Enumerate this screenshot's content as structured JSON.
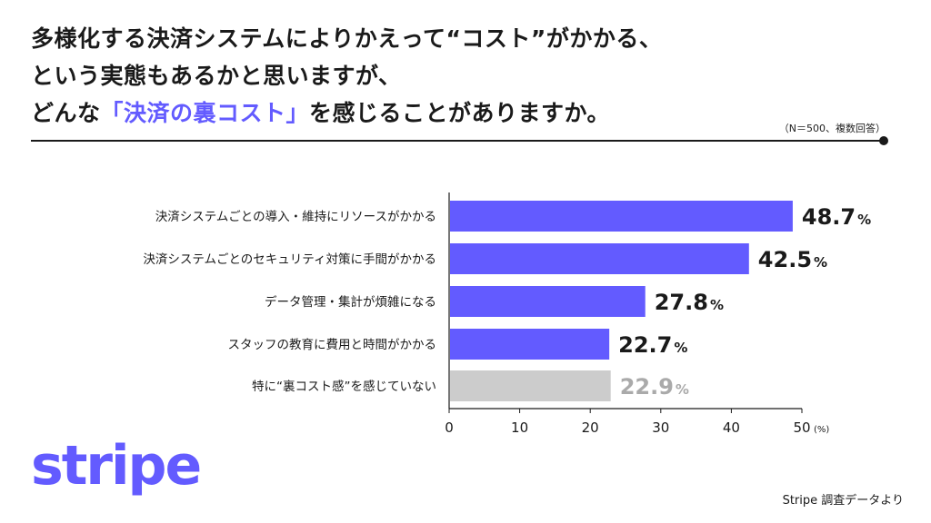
{
  "title": {
    "line1": "多様化する決済システムによりかえって“コスト”がかかる、",
    "line2": "という実態もあるかと思いますが、",
    "line3_prefix": "どんな",
    "line3_highlight": "「決済の裏コスト」",
    "line3_suffix": "を感じることがありますか。"
  },
  "note": "（N＝500、複数回答）",
  "logo": "stripe",
  "source": "Stripe 調査データより",
  "colors": {
    "accent": "#635bff",
    "muted": "#cccccc",
    "muted_text": "#aaaaaa",
    "text": "#1a1a1a"
  },
  "chart_data": {
    "type": "bar",
    "orientation": "horizontal",
    "categories": [
      "決済システムごとの導入・維持にリソースがかかる",
      "決済システムごとのセキュリティ対策に手間がかかる",
      "データ管理・集計が煩雑になる",
      "スタッフの教育に費用と時間がかかる",
      "特に“裏コスト感”を感じていない"
    ],
    "values": [
      48.7,
      42.5,
      27.8,
      22.7,
      22.9
    ],
    "muted": [
      false,
      false,
      false,
      false,
      true
    ],
    "value_unit": "%",
    "xlim": [
      0,
      50
    ],
    "xticks": [
      0,
      10,
      20,
      30,
      40,
      50
    ],
    "xunit": "(%)"
  }
}
